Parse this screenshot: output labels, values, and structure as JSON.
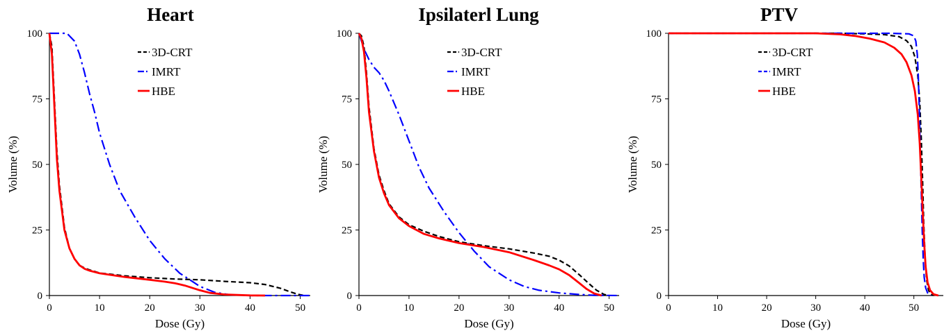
{
  "chart_data": [
    {
      "type": "line",
      "title": "Heart",
      "xlabel": "Dose (Gy)",
      "ylabel": "Volume (%)",
      "xlim": [
        0,
        52
      ],
      "ylim": [
        0,
        100
      ],
      "xticks": [
        "0",
        "10",
        "20",
        "30",
        "40",
        "50"
      ],
      "yticks": [
        "0",
        "25",
        "50",
        "75",
        "100"
      ],
      "legend_position": "top-center",
      "grid": false,
      "series": [
        {
          "name": "3D-CRT",
          "color": "#000000",
          "style": "dashed",
          "x": [
            0,
            0.5,
            1,
            1.5,
            2,
            3,
            4,
            5,
            6,
            7,
            8,
            10,
            15,
            20,
            25,
            30,
            35,
            40,
            43,
            46,
            48,
            49.5,
            50.5,
            51
          ],
          "y": [
            100,
            95,
            75,
            55,
            42,
            26,
            18,
            14,
            11.5,
            10.5,
            9.8,
            8.6,
            7.5,
            6.8,
            6.3,
            6.0,
            5.4,
            4.9,
            4.2,
            2.8,
            1.4,
            0.5,
            0.1,
            0
          ]
        },
        {
          "name": "IMRT",
          "color": "#0000ff",
          "style": "dashdot",
          "x": [
            0,
            2,
            3.5,
            5,
            6,
            7,
            8,
            9,
            10,
            12,
            14,
            17,
            20,
            23,
            26,
            30,
            33,
            36,
            40,
            52
          ],
          "y": [
            100,
            100,
            100,
            97,
            92,
            85,
            77,
            70,
            62,
            50,
            40,
            30,
            21,
            14,
            8.5,
            3.5,
            1.2,
            0.3,
            0,
            0
          ]
        },
        {
          "name": "HBE",
          "color": "#ff0000",
          "style": "solid",
          "x": [
            0,
            0.5,
            1,
            1.5,
            2,
            3,
            4,
            5,
            6,
            7,
            8,
            10,
            15,
            20,
            23,
            25,
            27,
            30,
            32,
            35,
            40,
            43
          ],
          "y": [
            100,
            92,
            72,
            52,
            40,
            25,
            18,
            14,
            11.5,
            10.2,
            9.5,
            8.5,
            7.1,
            6.0,
            5.3,
            4.7,
            3.8,
            2.0,
            1.0,
            0.4,
            0.05,
            0
          ]
        }
      ]
    },
    {
      "type": "line",
      "title": "Ipsilaterl Lung",
      "xlabel": "Dose (Gy)",
      "ylabel": "Volume (%)",
      "xlim": [
        0,
        52
      ],
      "ylim": [
        0,
        100
      ],
      "xticks": [
        "0",
        "10",
        "20",
        "30",
        "40",
        "50"
      ],
      "yticks": [
        "0",
        "25",
        "50",
        "75",
        "100"
      ],
      "legend_position": "top-center",
      "grid": false,
      "series": [
        {
          "name": "3D-CRT",
          "color": "#000000",
          "style": "dashed",
          "x": [
            0,
            0.5,
            1,
            1.5,
            2,
            3,
            4,
            5,
            6,
            8,
            10,
            13,
            16,
            20,
            25,
            30,
            35,
            38,
            40,
            42,
            44,
            46,
            47.5,
            49,
            50
          ],
          "y": [
            100,
            99,
            95,
            85,
            72,
            56,
            46,
            40,
            35,
            30,
            27,
            24.5,
            22.5,
            20.5,
            19,
            17.8,
            16.2,
            15,
            13.5,
            11.3,
            8,
            4.5,
            2,
            0.4,
            0
          ]
        },
        {
          "name": "IMRT",
          "color": "#0000ff",
          "style": "dashdot",
          "x": [
            0,
            0.5,
            1,
            1.5,
            2,
            3,
            4,
            5,
            6,
            8,
            10,
            12,
            14,
            17,
            20,
            23,
            26,
            30,
            33,
            36,
            40,
            44,
            47,
            52
          ],
          "y": [
            100,
            97,
            94,
            92,
            90,
            87,
            85,
            82,
            78,
            69,
            59,
            49,
            41,
            32,
            24,
            17,
            11,
            6,
            3.5,
            2,
            1,
            0.4,
            0.1,
            0
          ]
        },
        {
          "name": "HBE",
          "color": "#ff0000",
          "style": "solid",
          "x": [
            0,
            0.5,
            1,
            1.5,
            2,
            3,
            4,
            5,
            6,
            8,
            10,
            13,
            16,
            20,
            25,
            30,
            35,
            38,
            40,
            42,
            44,
            45.5,
            47,
            48.5
          ],
          "y": [
            100,
            98,
            93,
            83,
            70,
            55,
            45,
            39,
            34.5,
            29.5,
            26.5,
            23.5,
            21.8,
            20,
            18.5,
            16.5,
            13.5,
            11.5,
            10,
            7.8,
            4.8,
            2.5,
            0.8,
            0
          ]
        }
      ]
    },
    {
      "type": "line",
      "title": "PTV",
      "xlabel": "Dose (Gy)",
      "ylabel": "Volume (%)",
      "xlim": [
        0,
        56
      ],
      "ylim": [
        0,
        100
      ],
      "xticks": [
        "0",
        "10",
        "20",
        "30",
        "40",
        "50"
      ],
      "yticks": [
        "0",
        "25",
        "50",
        "75",
        "100"
      ],
      "legend_position": "top-center",
      "grid": false,
      "series": [
        {
          "name": "3D-CRT",
          "color": "#000000",
          "style": "dashed",
          "x": [
            0,
            35,
            40,
            44,
            47,
            48.5,
            49.5,
            50.2,
            50.8,
            51.2,
            51.5,
            51.8,
            52.0,
            52.3,
            52.6,
            53.0,
            53.4,
            54
          ],
          "y": [
            100,
            100,
            99.8,
            99.5,
            98.7,
            97.2,
            95,
            91,
            84,
            74,
            60,
            42,
            28,
            14,
            6,
            2,
            0.5,
            0
          ]
        },
        {
          "name": "IMRT",
          "color": "#0000ff",
          "style": "dashdash",
          "x": [
            0,
            45,
            49,
            50,
            50.4,
            50.7,
            50.9,
            51.1,
            51.3,
            51.5,
            51.7,
            51.9,
            52.1,
            52.4,
            52.8,
            53.5
          ],
          "y": [
            100,
            100,
            99.8,
            99,
            97,
            92,
            84,
            72,
            56,
            40,
            25,
            14,
            7,
            3,
            1,
            0
          ]
        },
        {
          "name": "HBE",
          "color": "#ff0000",
          "style": "solid",
          "x": [
            0,
            30,
            35,
            38,
            41,
            44,
            46,
            47.5,
            48.5,
            49.5,
            50.2,
            50.8,
            51.2,
            51.5,
            51.8,
            52.1,
            52.4,
            52.8,
            53.3,
            54,
            55
          ],
          "y": [
            100,
            100,
            99.6,
            99,
            98,
            96.5,
            94.5,
            92,
            89,
            84,
            78,
            69,
            58,
            45,
            32,
            20,
            11,
            5,
            2,
            0.5,
            0
          ]
        }
      ]
    }
  ]
}
